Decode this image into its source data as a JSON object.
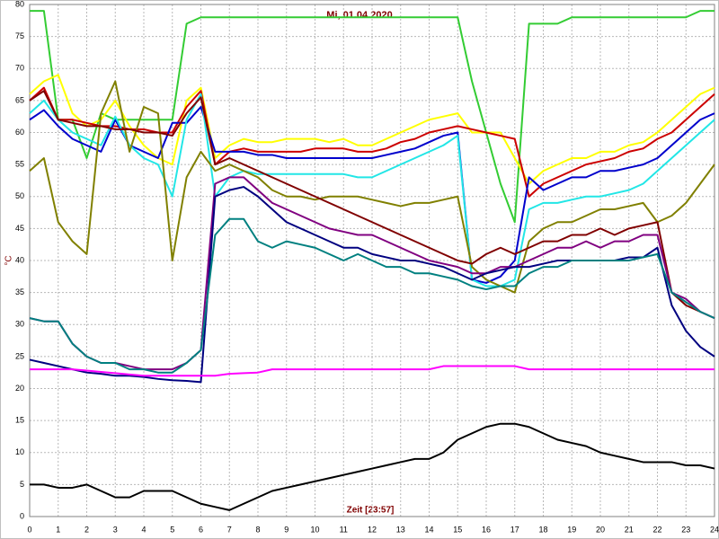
{
  "chart_data": {
    "type": "line",
    "title": "Mi, 01.04.2020",
    "xlabel": "Zeit [23:57]",
    "ylabel": "°C",
    "xlim": [
      0,
      24
    ],
    "ylim": [
      0,
      80
    ],
    "xticks": [
      0,
      1,
      2,
      3,
      4,
      5,
      6,
      7,
      8,
      9,
      10,
      11,
      12,
      13,
      14,
      15,
      16,
      17,
      18,
      19,
      20,
      21,
      22,
      23,
      24
    ],
    "yticks": [
      0,
      5,
      10,
      15,
      20,
      25,
      30,
      35,
      40,
      45,
      50,
      55,
      60,
      65,
      70,
      75,
      80
    ],
    "grid": true,
    "x": [
      0,
      0.5,
      1,
      1.5,
      2,
      2.5,
      3,
      3.5,
      4,
      4.5,
      5,
      5.5,
      6,
      6.5,
      7,
      7.5,
      8,
      8.5,
      9,
      9.5,
      10,
      10.5,
      11,
      11.5,
      12,
      12.5,
      13,
      13.5,
      14,
      14.5,
      15,
      15.5,
      16,
      16.5,
      17,
      17.5,
      18,
      18.5,
      19,
      19.5,
      20,
      20.5,
      21,
      21.5,
      22,
      22.5,
      23,
      23.5,
      24
    ],
    "series": [
      {
        "color": "#33cc33",
        "values": [
          79,
          79,
          62,
          62,
          56,
          63,
          62,
          62,
          62,
          62,
          62,
          77,
          78,
          78,
          78,
          78,
          78,
          78,
          78,
          78,
          78,
          78,
          78,
          78,
          78,
          78,
          78,
          78,
          78,
          78,
          78,
          68,
          60,
          52,
          46,
          77,
          77,
          77,
          78,
          78,
          78,
          78,
          78,
          78,
          78,
          78,
          78,
          79,
          79
        ]
      },
      {
        "color": "#ffff00",
        "values": [
          66,
          68,
          69,
          63,
          61,
          62,
          65,
          61,
          58,
          56,
          55,
          65,
          67,
          56,
          58,
          59,
          58.5,
          58.5,
          59,
          59,
          59,
          58.5,
          59,
          58,
          58,
          59,
          60,
          61,
          62,
          62.5,
          63,
          60,
          60,
          60,
          56,
          52,
          54,
          55,
          56,
          56,
          57,
          57,
          58,
          58.5,
          60,
          62,
          64,
          66,
          67
        ]
      },
      {
        "color": "#cc0000",
        "values": [
          65,
          67,
          62,
          62,
          61.5,
          61,
          61,
          60.5,
          60.5,
          60,
          60,
          64,
          66.5,
          55,
          57,
          57.5,
          57,
          57,
          57,
          57,
          57.5,
          57.5,
          57.5,
          57,
          57,
          57.5,
          58.5,
          59,
          60,
          60.5,
          61,
          60.5,
          60,
          59.5,
          59,
          50,
          52,
          53,
          54,
          55,
          55.5,
          56,
          57,
          57.5,
          59,
          60,
          62,
          64,
          66
        ]
      },
      {
        "color": "#0000cc",
        "values": [
          62,
          63.5,
          61,
          59,
          58,
          57,
          62,
          58,
          57,
          56,
          61.5,
          61.5,
          64,
          57,
          57,
          57,
          56.5,
          56.5,
          56,
          56,
          56,
          56,
          56,
          56,
          56,
          56.5,
          57,
          57.5,
          58.5,
          59.5,
          60,
          37,
          36.5,
          37.5,
          40,
          53,
          51,
          52,
          53,
          53,
          54,
          54,
          54.5,
          55,
          56,
          58,
          60,
          62,
          63
        ]
      },
      {
        "color": "#22e6e6",
        "values": [
          63,
          65,
          62,
          60,
          59,
          58,
          62.5,
          58,
          56,
          55,
          50,
          62,
          66,
          50,
          53,
          54,
          53.5,
          53.5,
          53.5,
          53.5,
          53.5,
          53.5,
          53.5,
          53,
          53,
          54,
          55,
          56,
          57,
          58,
          59.5,
          37,
          36,
          36,
          37,
          48,
          49,
          49,
          49.5,
          50,
          50,
          50.5,
          51,
          52,
          54,
          56,
          58,
          60,
          62
        ]
      },
      {
        "color": "#808000",
        "values": [
          54,
          56,
          46,
          43,
          41,
          63,
          68,
          57,
          64,
          63,
          40,
          53,
          57,
          54,
          55,
          54,
          53,
          51,
          50,
          50,
          49.5,
          50,
          50,
          50,
          49.5,
          49,
          48.5,
          49,
          49,
          49.5,
          50,
          39,
          37,
          36,
          35,
          43,
          45,
          46,
          46,
          47,
          48,
          48,
          48.5,
          49,
          46,
          47,
          49,
          52,
          55
        ]
      },
      {
        "color": "#800000",
        "values": [
          65,
          66.5,
          62,
          61.5,
          61,
          61,
          60.5,
          60.5,
          60,
          60,
          59.5,
          63,
          65.5,
          55,
          56,
          55,
          54,
          53,
          52,
          51,
          50,
          49,
          48,
          47,
          46,
          45,
          44,
          43,
          42,
          41,
          40,
          39.5,
          41,
          42,
          41,
          42,
          43,
          43,
          44,
          44,
          45,
          44,
          45,
          45.5,
          46,
          35,
          33,
          32,
          31
        ]
      },
      {
        "color": "#800080",
        "values": [
          31,
          30.5,
          30.5,
          27,
          25,
          24,
          24,
          23.5,
          23,
          23,
          23,
          24,
          26,
          52,
          53,
          53,
          51,
          49,
          48,
          47,
          46,
          45,
          44.5,
          44,
          44,
          43,
          42,
          41,
          40,
          39.5,
          39,
          38,
          38,
          39,
          39,
          40,
          41,
          42,
          42,
          43,
          42,
          43,
          43,
          44,
          44,
          35,
          34,
          32,
          31
        ]
      },
      {
        "color": "#000080",
        "values": [
          24.5,
          24,
          23.5,
          23,
          22.5,
          22.3,
          22,
          22,
          21.8,
          21.5,
          21.3,
          21.2,
          21,
          50,
          51,
          51.5,
          50,
          48,
          46,
          45,
          44,
          43,
          42,
          42,
          41,
          40.5,
          40,
          40,
          39.5,
          39,
          38,
          37,
          38,
          38.5,
          39,
          39,
          39.5,
          40,
          40,
          40,
          40,
          40,
          40.5,
          40.5,
          42,
          33,
          29,
          26.5,
          25
        ]
      },
      {
        "color": "#008080",
        "values": [
          31,
          30.5,
          30.5,
          27,
          25,
          24,
          24,
          23,
          23,
          22.5,
          22.5,
          24,
          26,
          44,
          46.5,
          46.5,
          43,
          42,
          43,
          42.5,
          42,
          41,
          40,
          41,
          40,
          39,
          39,
          38,
          38,
          37.5,
          37,
          36,
          35.5,
          36,
          36,
          38,
          39,
          39,
          40,
          40,
          40,
          40,
          40,
          40.5,
          41,
          35,
          33.5,
          32,
          31
        ]
      },
      {
        "color": "#ff00ff",
        "values": [
          23,
          23,
          23,
          23,
          22.8,
          22.6,
          22.4,
          22.2,
          22,
          22,
          22,
          22,
          22,
          22,
          22.3,
          22.4,
          22.5,
          23,
          23,
          23,
          23,
          23,
          23,
          23,
          23,
          23,
          23,
          23,
          23,
          23.5,
          23.5,
          23.5,
          23.5,
          23.5,
          23.5,
          23,
          23,
          23,
          23,
          23,
          23,
          23,
          23,
          23,
          23,
          23,
          23,
          23,
          23
        ]
      },
      {
        "color": "#000000",
        "values": [
          5,
          5,
          4.5,
          4.5,
          5,
          4,
          3,
          3,
          4,
          4,
          4,
          3,
          2,
          1.5,
          1,
          2,
          3,
          4,
          4.5,
          5,
          5.5,
          6,
          6.5,
          7,
          7.5,
          8,
          8.5,
          9,
          9,
          10,
          12,
          13,
          14,
          14.5,
          14.5,
          14,
          13,
          12,
          11.5,
          11,
          10,
          9.5,
          9,
          8.5,
          8.5,
          8.5,
          8,
          8,
          7.5
        ]
      }
    ]
  }
}
